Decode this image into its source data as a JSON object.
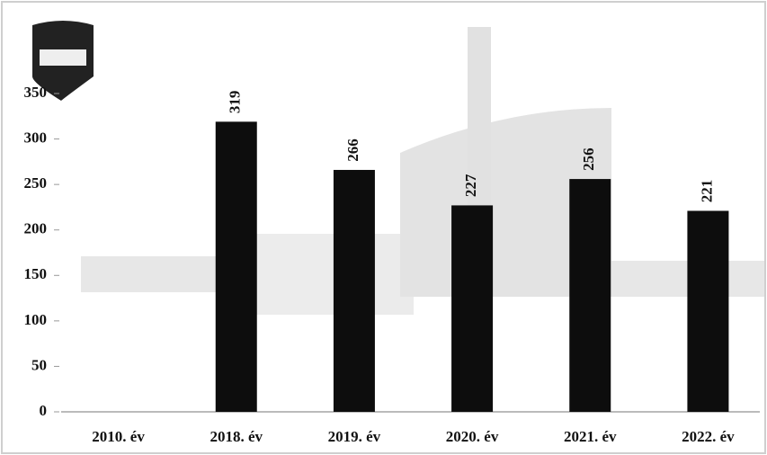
{
  "chart_data": {
    "type": "bar",
    "categories": [
      "2010. év",
      "2018. év",
      "2019. év",
      "2020. év",
      "2021. év",
      "2022. év"
    ],
    "values": [
      null,
      319,
      266,
      227,
      256,
      221
    ],
    "color": "#0d0d0d",
    "ylim": [
      0,
      350
    ],
    "yticks": [
      0,
      50,
      100,
      150,
      200,
      250,
      300,
      350
    ]
  }
}
